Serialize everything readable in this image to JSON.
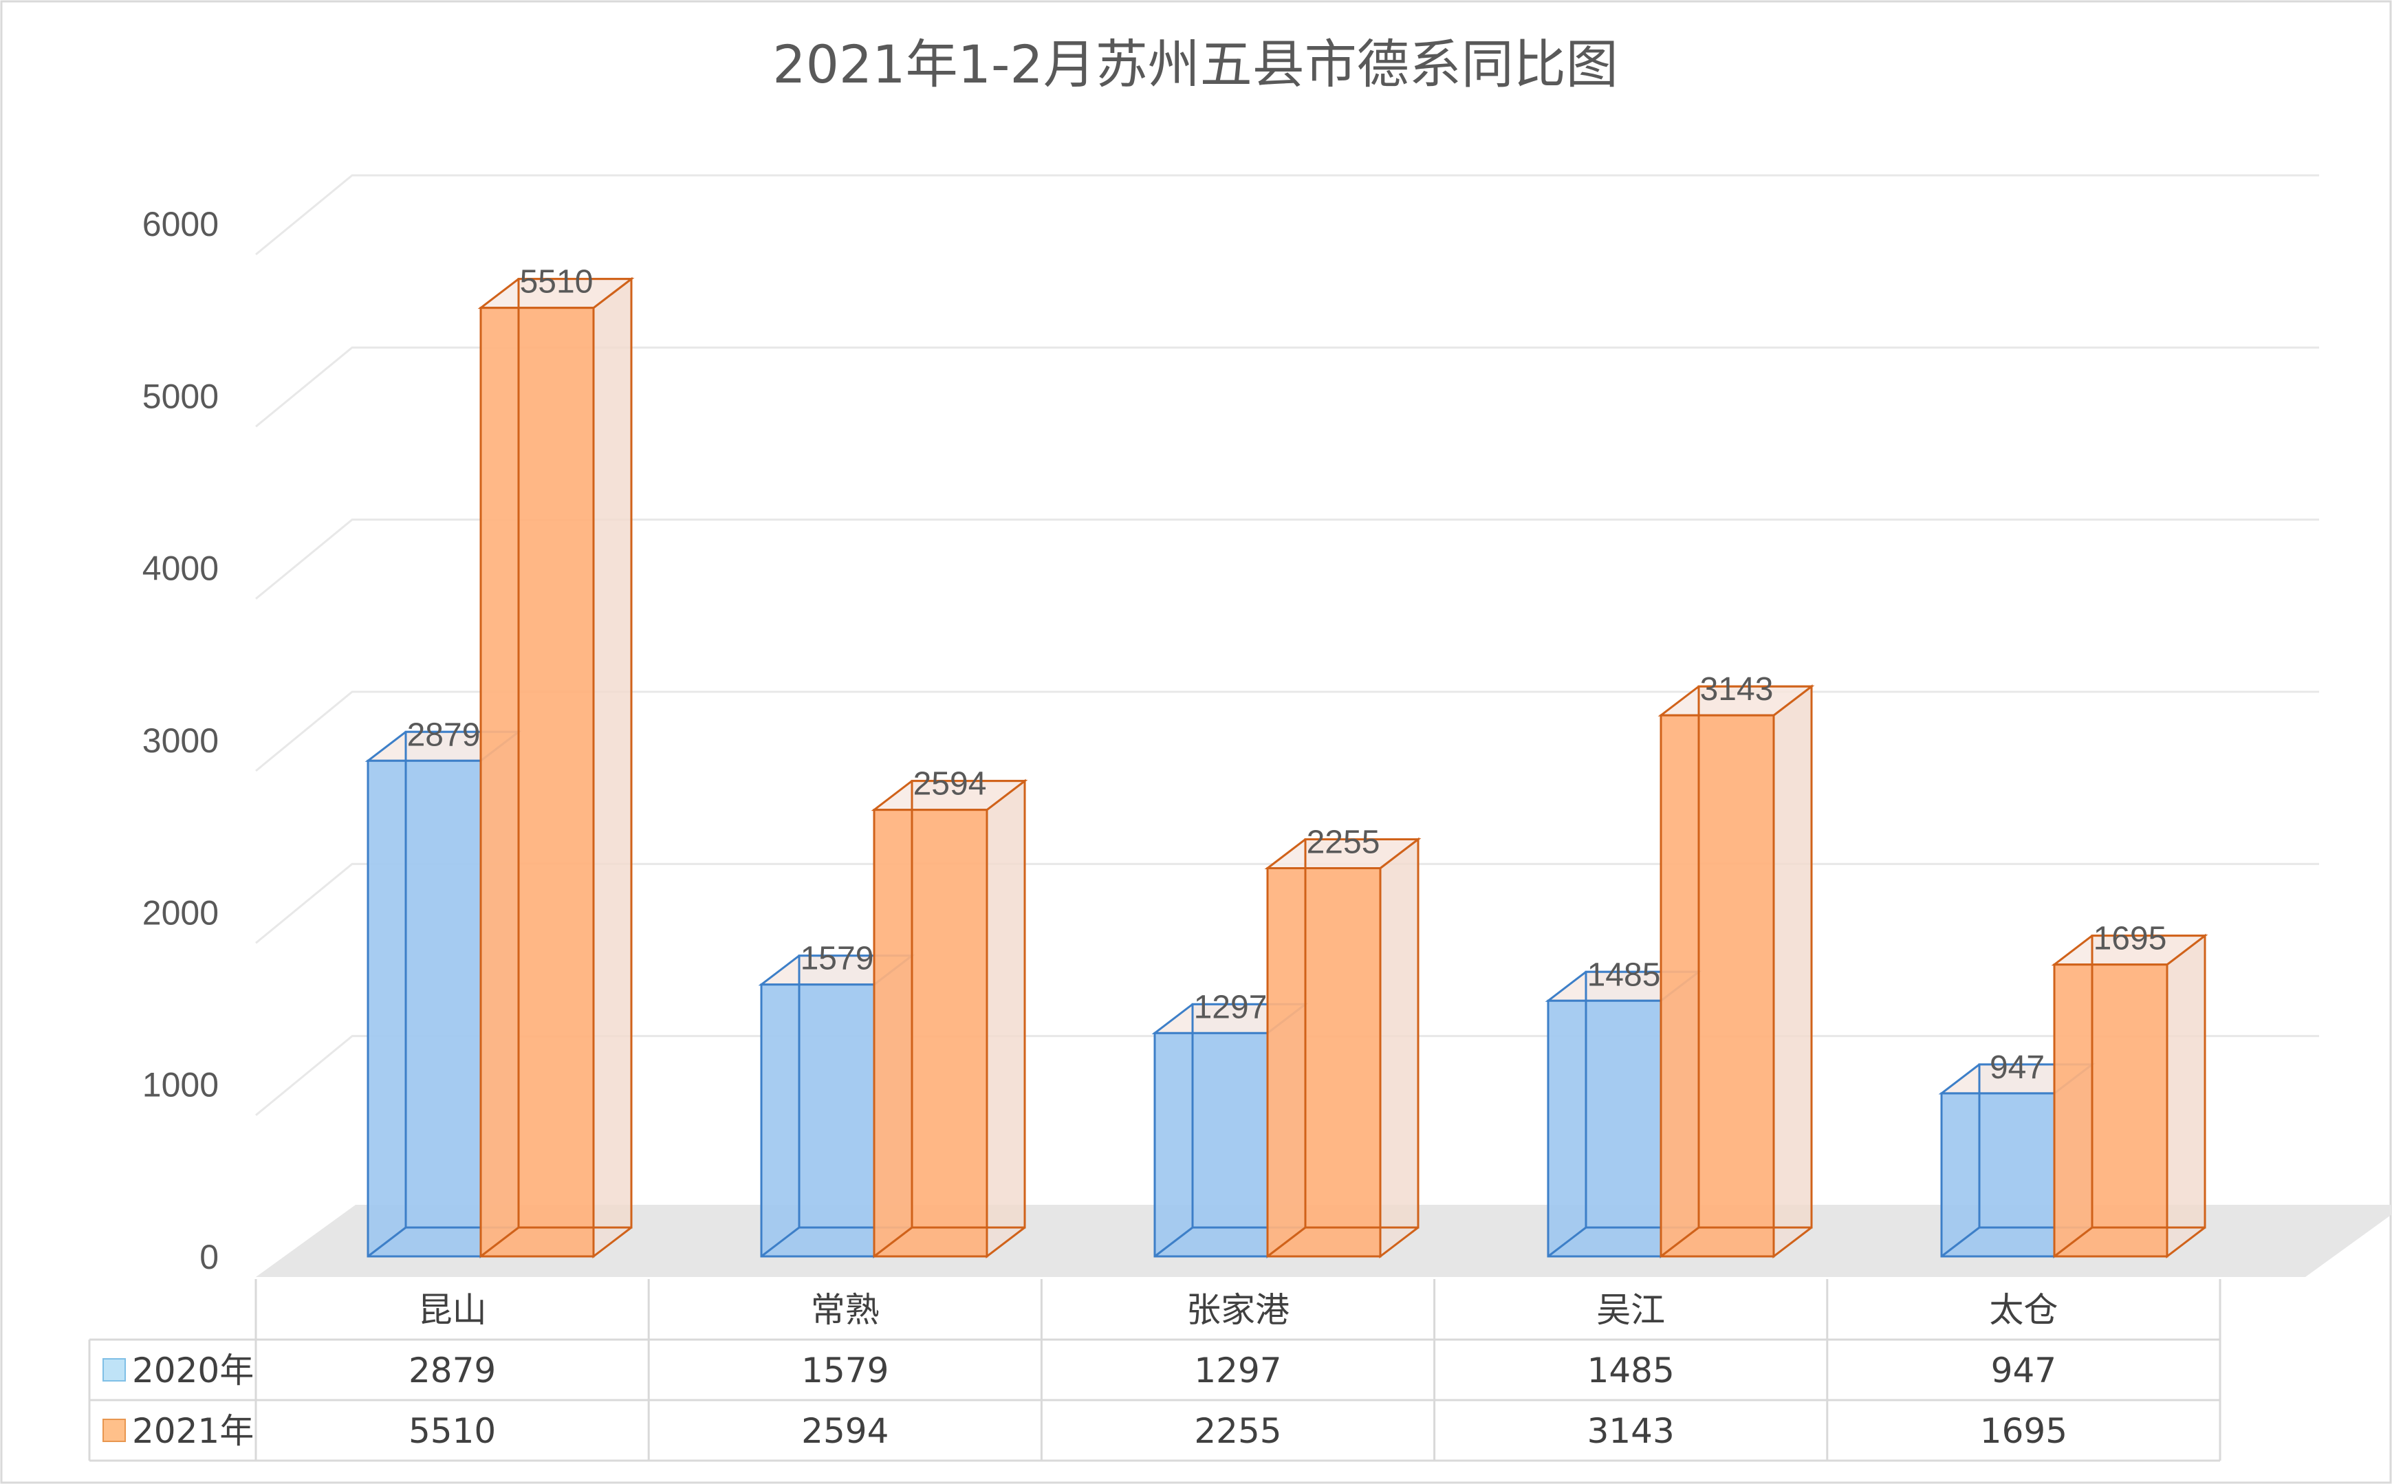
{
  "chart_data": {
    "type": "bar",
    "title": "2021年1-2月苏州五县市德系同比图",
    "categories": [
      "昆山",
      "常熟",
      "张家港",
      "吴江",
      "太仓"
    ],
    "series": [
      {
        "name": "2020年",
        "values": [
          2879,
          1579,
          1297,
          1485,
          947
        ],
        "color": "#9fc8f0",
        "stroke": "#3d7fc8"
      },
      {
        "name": "2021年",
        "values": [
          5510,
          2594,
          2255,
          3143,
          1695
        ],
        "color": "#ffb27d",
        "stroke": "#d0621a"
      }
    ],
    "yticks": [
      "0",
      "1000",
      "2000",
      "3000",
      "4000",
      "5000",
      "6000"
    ],
    "ylim": [
      0,
      6000
    ],
    "xlabel": "",
    "ylabel": "",
    "grid": true,
    "data_table": true,
    "style": "3d-clustered-column"
  }
}
